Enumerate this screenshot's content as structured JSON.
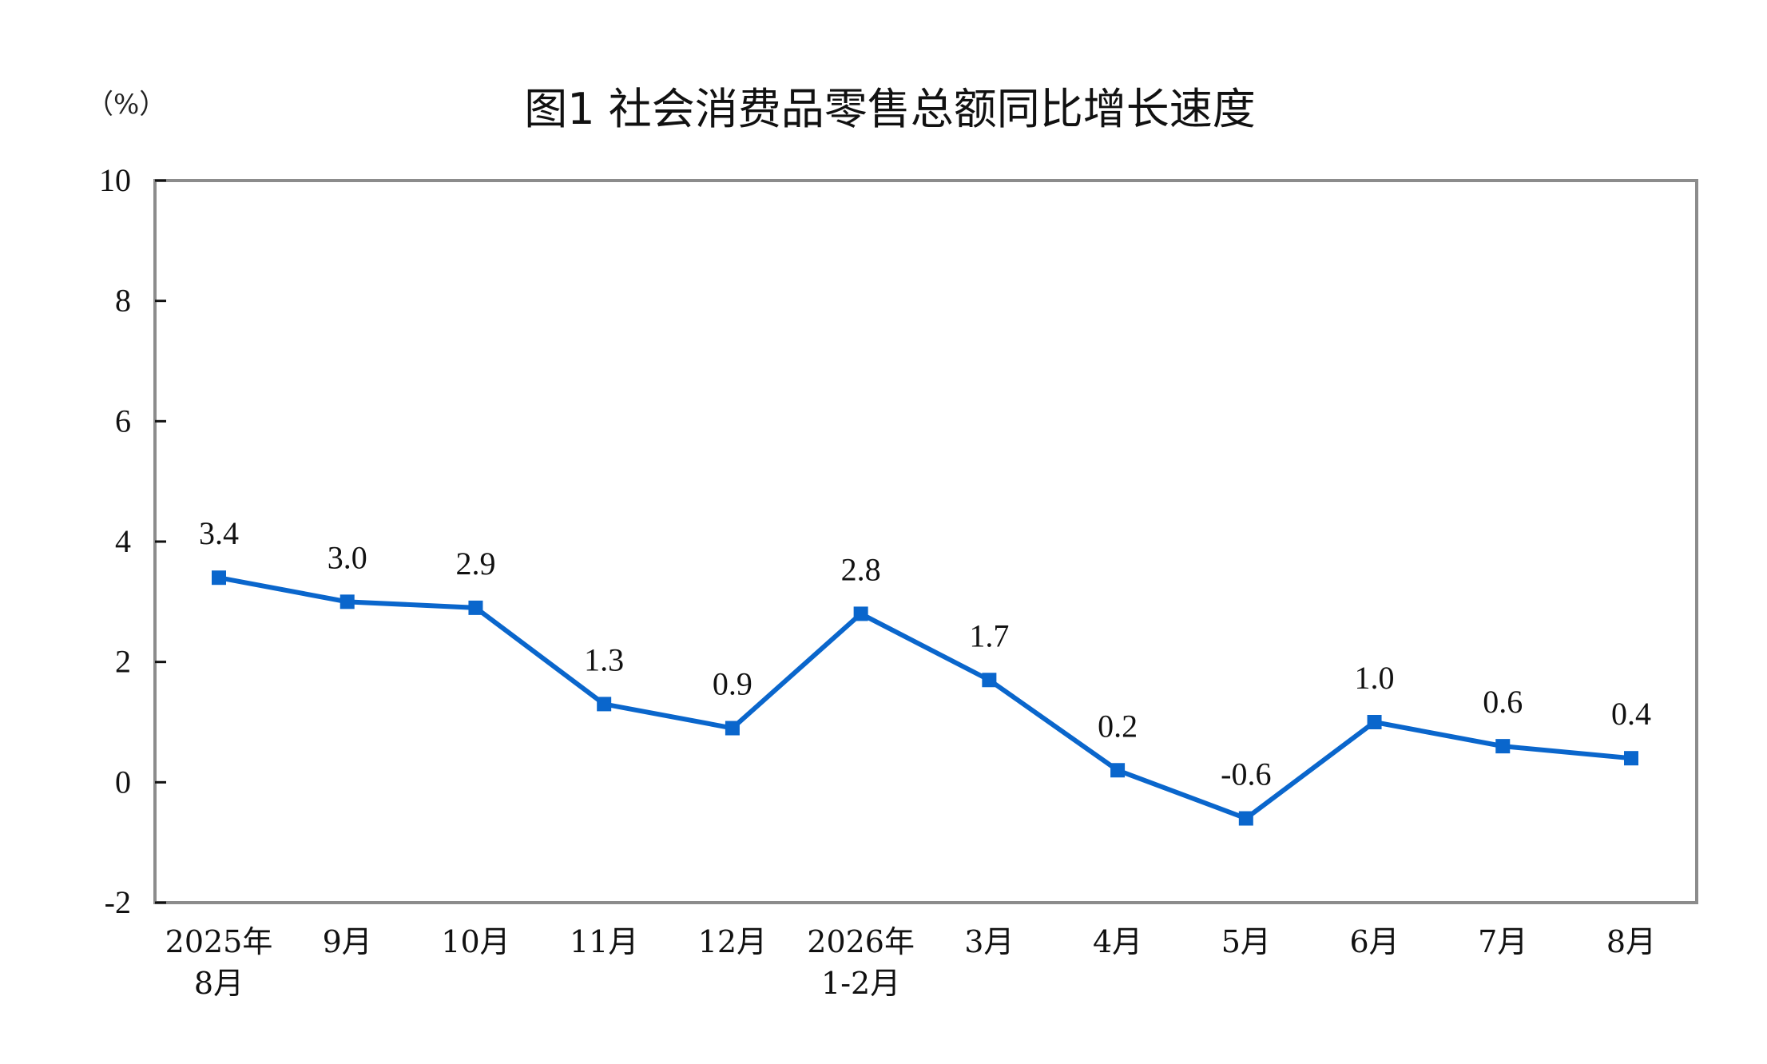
{
  "chart_data": {
    "type": "line",
    "title": "图1  社会消费品零售总额同比增长速度",
    "unit": "（%）",
    "categories": [
      [
        "2025年",
        "8月"
      ],
      [
        "9月"
      ],
      [
        "10月"
      ],
      [
        "11月"
      ],
      [
        "12月"
      ],
      [
        "2026年",
        "1-2月"
      ],
      [
        "3月"
      ],
      [
        "4月"
      ],
      [
        "5月"
      ],
      [
        "6月"
      ],
      [
        "7月"
      ],
      [
        "8月"
      ]
    ],
    "values": [
      3.4,
      3.0,
      2.9,
      1.3,
      0.9,
      2.8,
      1.7,
      0.2,
      -0.6,
      1.0,
      0.6,
      0.4
    ],
    "value_labels": [
      "3.4",
      "3.0",
      "2.9",
      "1.3",
      "0.9",
      "2.8",
      "1.7",
      "0.2",
      "-0.6",
      "1.0",
      "0.6",
      "0.4"
    ],
    "ylim": [
      -2,
      10
    ],
    "yticks": [
      -2,
      0,
      2,
      4,
      6,
      8,
      10
    ],
    "grid": false,
    "legend": "none",
    "line_color": "#0a66cc",
    "marker": "square",
    "frame_color": "#8c8c8c"
  }
}
